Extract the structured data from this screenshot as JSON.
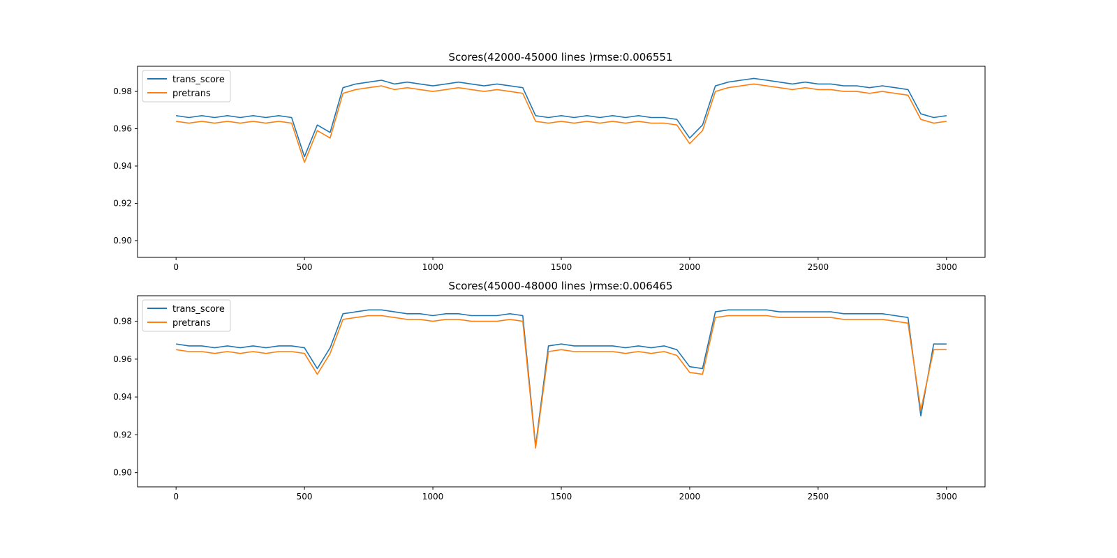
{
  "colors": {
    "trans_score": "#1f77b4",
    "pretrans": "#ff7f0e",
    "axes": "#000000",
    "legend_border": "#cccccc",
    "background": "#ffffff"
  },
  "chart_data": [
    {
      "type": "line",
      "title": "Scores(42000-45000 lines )rmse:0.006551",
      "xlabel": "",
      "ylabel": "",
      "xlim": [
        -150,
        3150
      ],
      "ylim": [
        0.891,
        0.9935
      ],
      "x_ticks": [
        0,
        500,
        1000,
        1500,
        2000,
        2500,
        3000
      ],
      "y_ticks": [
        0.9,
        0.92,
        0.94,
        0.96,
        0.98
      ],
      "legend": {
        "position": "top-left",
        "entries": [
          "trans_score",
          "pretrans"
        ]
      },
      "grid": false,
      "series": [
        {
          "name": "trans_score",
          "x": [
            0,
            50,
            100,
            150,
            200,
            250,
            300,
            350,
            400,
            450,
            500,
            550,
            600,
            650,
            700,
            750,
            800,
            850,
            900,
            950,
            1000,
            1050,
            1100,
            1150,
            1200,
            1250,
            1300,
            1350,
            1400,
            1450,
            1500,
            1550,
            1600,
            1650,
            1700,
            1750,
            1800,
            1850,
            1900,
            1950,
            2000,
            2050,
            2100,
            2150,
            2200,
            2250,
            2300,
            2350,
            2400,
            2450,
            2500,
            2550,
            2600,
            2650,
            2700,
            2750,
            2800,
            2850,
            2900,
            2950,
            3000
          ],
          "y": [
            0.967,
            0.966,
            0.967,
            0.966,
            0.967,
            0.966,
            0.967,
            0.966,
            0.967,
            0.966,
            0.945,
            0.962,
            0.958,
            0.982,
            0.984,
            0.985,
            0.986,
            0.984,
            0.985,
            0.984,
            0.983,
            0.984,
            0.985,
            0.984,
            0.983,
            0.984,
            0.983,
            0.982,
            0.967,
            0.966,
            0.967,
            0.966,
            0.967,
            0.966,
            0.967,
            0.966,
            0.967,
            0.966,
            0.966,
            0.965,
            0.955,
            0.962,
            0.983,
            0.985,
            0.986,
            0.987,
            0.986,
            0.985,
            0.984,
            0.985,
            0.984,
            0.984,
            0.983,
            0.983,
            0.982,
            0.983,
            0.982,
            0.981,
            0.968,
            0.966,
            0.967
          ]
        },
        {
          "name": "pretrans",
          "x": [
            0,
            50,
            100,
            150,
            200,
            250,
            300,
            350,
            400,
            450,
            500,
            550,
            600,
            650,
            700,
            750,
            800,
            850,
            900,
            950,
            1000,
            1050,
            1100,
            1150,
            1200,
            1250,
            1300,
            1350,
            1400,
            1450,
            1500,
            1550,
            1600,
            1650,
            1700,
            1750,
            1800,
            1850,
            1900,
            1950,
            2000,
            2050,
            2100,
            2150,
            2200,
            2250,
            2300,
            2350,
            2400,
            2450,
            2500,
            2550,
            2600,
            2650,
            2700,
            2750,
            2800,
            2850,
            2900,
            2950,
            3000
          ],
          "y": [
            0.964,
            0.963,
            0.964,
            0.963,
            0.964,
            0.963,
            0.964,
            0.963,
            0.964,
            0.963,
            0.942,
            0.959,
            0.955,
            0.979,
            0.981,
            0.982,
            0.983,
            0.981,
            0.982,
            0.981,
            0.98,
            0.981,
            0.982,
            0.981,
            0.98,
            0.981,
            0.98,
            0.979,
            0.964,
            0.963,
            0.964,
            0.963,
            0.964,
            0.963,
            0.964,
            0.963,
            0.964,
            0.963,
            0.963,
            0.962,
            0.952,
            0.959,
            0.98,
            0.982,
            0.983,
            0.984,
            0.983,
            0.982,
            0.981,
            0.982,
            0.981,
            0.981,
            0.98,
            0.98,
            0.979,
            0.98,
            0.979,
            0.978,
            0.965,
            0.963,
            0.964
          ]
        }
      ]
    },
    {
      "type": "line",
      "title": "Scores(45000-48000 lines )rmse:0.006465",
      "xlabel": "",
      "ylabel": "",
      "xlim": [
        -150,
        3150
      ],
      "ylim": [
        0.8925,
        0.9935
      ],
      "x_ticks": [
        0,
        500,
        1000,
        1500,
        2000,
        2500,
        3000
      ],
      "y_ticks": [
        0.9,
        0.92,
        0.94,
        0.96,
        0.98
      ],
      "legend": {
        "position": "top-left",
        "entries": [
          "trans_score",
          "pretrans"
        ]
      },
      "grid": false,
      "series": [
        {
          "name": "trans_score",
          "x": [
            0,
            50,
            100,
            150,
            200,
            250,
            300,
            350,
            400,
            450,
            500,
            550,
            600,
            650,
            700,
            750,
            800,
            850,
            900,
            950,
            1000,
            1050,
            1100,
            1150,
            1200,
            1250,
            1300,
            1350,
            1400,
            1450,
            1500,
            1550,
            1600,
            1650,
            1700,
            1750,
            1800,
            1850,
            1900,
            1950,
            2000,
            2050,
            2100,
            2150,
            2200,
            2250,
            2300,
            2350,
            2400,
            2450,
            2500,
            2550,
            2600,
            2650,
            2700,
            2750,
            2800,
            2850,
            2900,
            2950,
            3000
          ],
          "y": [
            0.968,
            0.967,
            0.967,
            0.966,
            0.967,
            0.966,
            0.967,
            0.966,
            0.967,
            0.967,
            0.966,
            0.955,
            0.966,
            0.984,
            0.985,
            0.986,
            0.986,
            0.985,
            0.984,
            0.984,
            0.983,
            0.984,
            0.984,
            0.983,
            0.983,
            0.983,
            0.984,
            0.983,
            0.914,
            0.967,
            0.968,
            0.967,
            0.967,
            0.967,
            0.967,
            0.966,
            0.967,
            0.966,
            0.967,
            0.965,
            0.956,
            0.955,
            0.985,
            0.986,
            0.986,
            0.986,
            0.986,
            0.985,
            0.985,
            0.985,
            0.985,
            0.985,
            0.984,
            0.984,
            0.984,
            0.984,
            0.983,
            0.982,
            0.93,
            0.968,
            0.968
          ]
        },
        {
          "name": "pretrans",
          "x": [
            0,
            50,
            100,
            150,
            200,
            250,
            300,
            350,
            400,
            450,
            500,
            550,
            600,
            650,
            700,
            750,
            800,
            850,
            900,
            950,
            1000,
            1050,
            1100,
            1150,
            1200,
            1250,
            1300,
            1350,
            1400,
            1450,
            1500,
            1550,
            1600,
            1650,
            1700,
            1750,
            1800,
            1850,
            1900,
            1950,
            2000,
            2050,
            2100,
            2150,
            2200,
            2250,
            2300,
            2350,
            2400,
            2450,
            2500,
            2550,
            2600,
            2650,
            2700,
            2750,
            2800,
            2850,
            2900,
            2950,
            3000
          ],
          "y": [
            0.965,
            0.964,
            0.964,
            0.963,
            0.964,
            0.963,
            0.964,
            0.963,
            0.964,
            0.964,
            0.963,
            0.952,
            0.963,
            0.981,
            0.982,
            0.983,
            0.983,
            0.982,
            0.981,
            0.981,
            0.98,
            0.981,
            0.981,
            0.98,
            0.98,
            0.98,
            0.981,
            0.98,
            0.913,
            0.964,
            0.965,
            0.964,
            0.964,
            0.964,
            0.964,
            0.963,
            0.964,
            0.963,
            0.964,
            0.962,
            0.953,
            0.952,
            0.982,
            0.983,
            0.983,
            0.983,
            0.983,
            0.982,
            0.982,
            0.982,
            0.982,
            0.982,
            0.981,
            0.981,
            0.981,
            0.981,
            0.98,
            0.979,
            0.933,
            0.965,
            0.965
          ]
        }
      ]
    }
  ]
}
